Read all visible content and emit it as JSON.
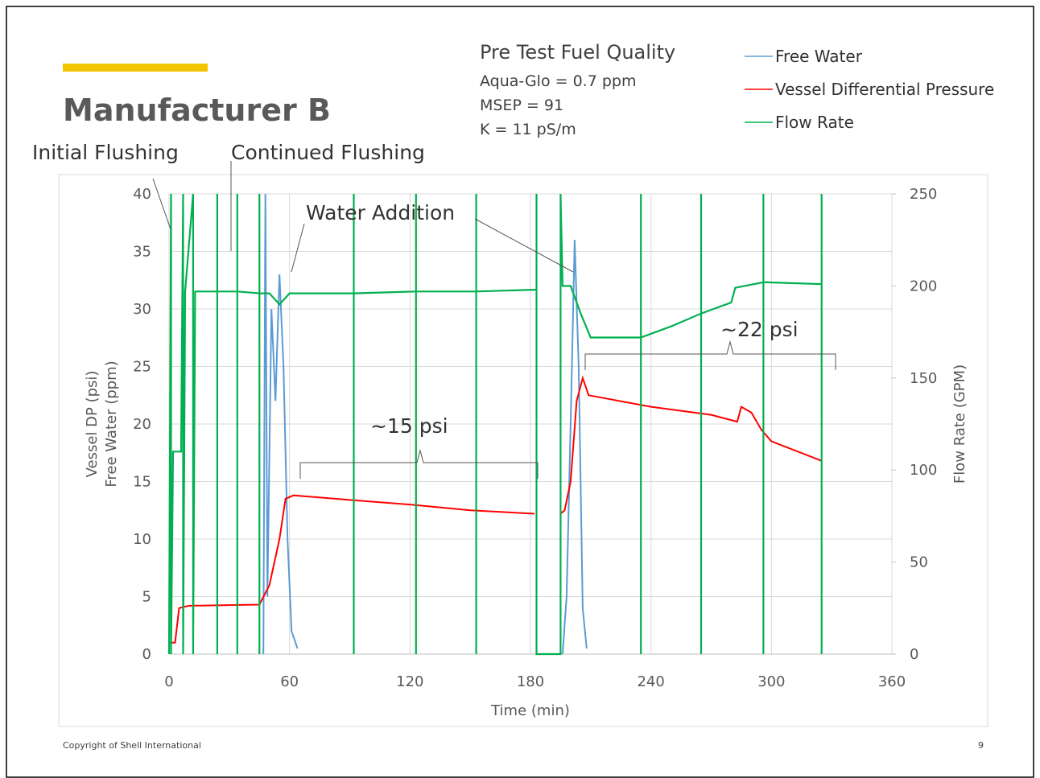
{
  "title": "Manufacturer B",
  "fuel_quality": {
    "heading": "Pre Test Fuel Quality",
    "lines": [
      "Aqua-Glo = 0.7 ppm",
      "MSEP = 91",
      "K = 11 pS/m"
    ]
  },
  "footer": {
    "copyright": "Copyright of Shell International",
    "page": "9"
  },
  "chart_data": {
    "type": "line",
    "xlabel": "Time (min)",
    "ylabel": [
      "Vessel DP (psi)",
      "Free Water (ppm)"
    ],
    "y2label": "Flow Rate (GPM)",
    "xlim": [
      0,
      360
    ],
    "xticks": [
      0,
      60,
      120,
      180,
      240,
      300,
      360
    ],
    "ylim": [
      0,
      40
    ],
    "yticks": [
      0,
      5,
      10,
      15,
      20,
      25,
      30,
      35,
      40
    ],
    "y2lim": [
      0,
      250
    ],
    "y2ticks": [
      0,
      50,
      100,
      150,
      200,
      250
    ],
    "grid": true,
    "legend": "top-right",
    "annotations": [
      "Initial Flushing",
      "Continued Flushing",
      "Water Addition",
      "~15 psi",
      "~22 psi"
    ],
    "series": [
      {
        "name": "Free Water",
        "color": "#5b9bd5",
        "x": [
          47,
          48,
          49,
          51,
          53,
          55,
          57,
          59,
          61,
          64,
          64,
          196,
          198,
          200,
          202,
          204,
          206,
          208
        ],
        "values": [
          0,
          40,
          5,
          30,
          22,
          33,
          25,
          10,
          2,
          0.5,
          null,
          0,
          5,
          20,
          36,
          25,
          4,
          0.5
        ]
      },
      {
        "name": "Vessel Differential Pressure",
        "color": "#ff0000",
        "x": [
          0,
          3,
          5,
          10,
          45,
          50,
          55,
          58,
          62,
          90,
          120,
          150,
          182,
          188,
          195,
          197,
          200,
          203,
          206,
          209,
          240,
          270,
          283,
          285,
          290,
          295,
          300,
          325
        ],
        "values": [
          1,
          1,
          4,
          4.2,
          4.3,
          6,
          10,
          13.5,
          13.8,
          13.4,
          13,
          12.5,
          12.2,
          null,
          12.2,
          12.5,
          15,
          22,
          24,
          22.5,
          21.5,
          20.8,
          20.2,
          21.5,
          21,
          19.5,
          18.5,
          16.8
        ]
      },
      {
        "name": "Flow Rate",
        "color": "#00b050",
        "axis": "y2",
        "x": [
          0,
          1,
          1,
          2,
          6,
          7,
          7,
          8,
          12,
          12,
          13,
          24,
          24,
          24,
          24,
          34,
          34,
          34,
          34,
          45,
          45,
          45,
          45,
          50,
          55,
          60,
          92,
          92,
          92,
          92,
          123,
          123,
          123,
          123,
          153,
          153,
          153,
          153,
          183,
          183,
          183,
          195,
          195,
          196,
          200,
          205,
          210,
          235,
          235,
          235,
          235,
          250,
          265,
          265,
          265,
          265,
          280,
          282,
          296,
          296,
          296,
          296,
          325,
          325,
          325
        ],
        "values": [
          0,
          250,
          0,
          110,
          110,
          250,
          0,
          197,
          250,
          0,
          197,
          197,
          250,
          0,
          197,
          197,
          250,
          0,
          197,
          196,
          250,
          0,
          196,
          196,
          190,
          196,
          196,
          250,
          0,
          196,
          197,
          250,
          0,
          197,
          197,
          250,
          0,
          197,
          198,
          250,
          0,
          0,
          250,
          200,
          200,
          185,
          172,
          172,
          250,
          0,
          172,
          178,
          185,
          250,
          0,
          185,
          191,
          199,
          202,
          250,
          0,
          202,
          201,
          250,
          0
        ]
      }
    ]
  }
}
